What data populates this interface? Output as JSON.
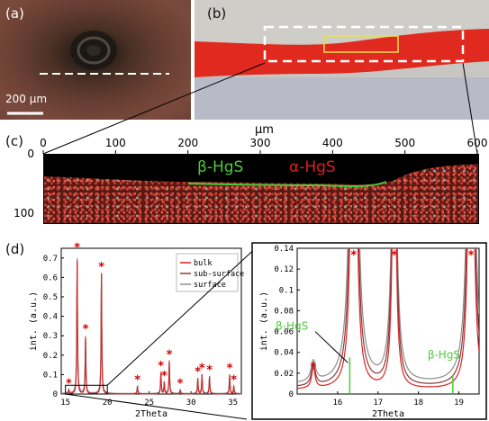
{
  "panels": {
    "a": {
      "label": "(a)",
      "scalebar": "200 μm"
    },
    "b": {
      "label": "(b)"
    },
    "c": {
      "label": "(c)",
      "axis_unit": "μm",
      "x_ticks": [
        "0",
        "100",
        "200",
        "300",
        "400",
        "500",
        "600"
      ],
      "y_ticks": [
        "0",
        "100"
      ],
      "beta_label": "β-HgS",
      "alpha_label": "α-HgS"
    },
    "d": {
      "label": "(d)"
    }
  },
  "colors": {
    "alpha": "#e11d1d",
    "beta": "#4ccc3a",
    "bulk": "#d62728",
    "subsurface": "#8b3a3a",
    "surface": "#8e8e8e",
    "marker": "#d40000"
  },
  "chart_data": [
    {
      "type": "line",
      "xlabel": "2Theta",
      "ylabel": "int. (a.u.)",
      "xlim": [
        14.5,
        36
      ],
      "ylim": [
        0,
        0.75
      ],
      "x_ticks": [
        "15",
        "20",
        "25",
        "30",
        "35"
      ],
      "y_ticks": [
        "0",
        "0.1",
        "0.2",
        "0.3",
        "0.4",
        "0.5",
        "0.6",
        "0.7"
      ],
      "legend": {
        "placement": "top-right",
        "entries": [
          "bulk",
          "sub-surface",
          "surface"
        ]
      },
      "peaks": [
        {
          "x": 15.4,
          "y": 0.02
        },
        {
          "x": 16.4,
          "y": 0.72
        },
        {
          "x": 17.4,
          "y": 0.3
        },
        {
          "x": 19.3,
          "y": 0.62
        },
        {
          "x": 23.6,
          "y": 0.04
        },
        {
          "x": 26.4,
          "y": 0.11
        },
        {
          "x": 26.8,
          "y": 0.06
        },
        {
          "x": 27.4,
          "y": 0.17
        },
        {
          "x": 28.7,
          "y": 0.02
        },
        {
          "x": 30.8,
          "y": 0.08
        },
        {
          "x": 31.3,
          "y": 0.1
        },
        {
          "x": 32.2,
          "y": 0.09
        },
        {
          "x": 34.6,
          "y": 0.1
        },
        {
          "x": 35.1,
          "y": 0.04
        }
      ],
      "marker": "*"
    },
    {
      "type": "line",
      "xlabel": "2Theta",
      "ylabel": "int. (a.u.)",
      "xlim": [
        15,
        19.5
      ],
      "ylim": [
        0,
        0.14
      ],
      "x_ticks": [
        "16",
        "17",
        "18",
        "19"
      ],
      "y_ticks": [
        "0",
        "0.02",
        "0.04",
        "0.06",
        "0.08",
        "0.1",
        "0.12",
        "0.14"
      ],
      "peaks": [
        {
          "x": 15.4,
          "y": 0.02
        },
        {
          "x": 16.4,
          "y": 0.72
        },
        {
          "x": 17.4,
          "y": 0.3
        },
        {
          "x": 19.3,
          "y": 0.62
        }
      ],
      "beta_markers": [
        {
          "x": 16.3,
          "label": "β-HgS"
        },
        {
          "x": 18.85,
          "label": "β-HgS"
        }
      ],
      "marker": "*"
    }
  ]
}
